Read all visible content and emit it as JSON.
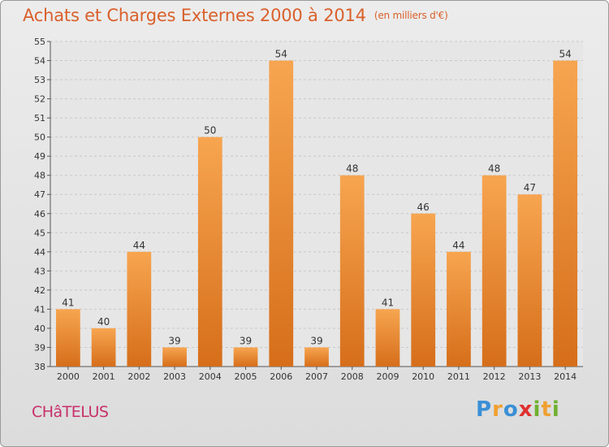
{
  "header": {
    "title": "Achats et Charges Externes 2000 à 2014",
    "units": "(en milliers d'€)"
  },
  "footer": {
    "commune": "CHâTELUS",
    "logo_letters": [
      "P",
      "r",
      "o",
      "x",
      "i",
      "t",
      "i"
    ],
    "logo_colors": [
      "#3a8fd6",
      "#f0a030",
      "#3a8fd6",
      "#e03030",
      "#70b030",
      "#f0a030",
      "#70b030"
    ]
  },
  "colors": {
    "title": "#d9602b",
    "bar_light": "#f7a550",
    "bar_dark": "#d66e1a",
    "grid": "#c8c8c8",
    "commune": "#c8306a"
  },
  "chart_data": {
    "type": "bar",
    "categories": [
      "2000",
      "2001",
      "2002",
      "2003",
      "2004",
      "2005",
      "2006",
      "2007",
      "2008",
      "2009",
      "2010",
      "2011",
      "2012",
      "2013",
      "2014"
    ],
    "values": [
      41,
      40,
      44,
      39,
      50,
      39,
      54,
      39,
      48,
      41,
      46,
      44,
      48,
      47,
      54
    ],
    "title": "Achats et Charges Externes 2000 à 2014",
    "xlabel": "",
    "ylabel": "",
    "ylim": [
      38,
      55
    ],
    "yticks": [
      38,
      39,
      40,
      41,
      42,
      43,
      44,
      45,
      46,
      47,
      48,
      49,
      50,
      51,
      52,
      53,
      54,
      55
    ],
    "grid": true
  }
}
